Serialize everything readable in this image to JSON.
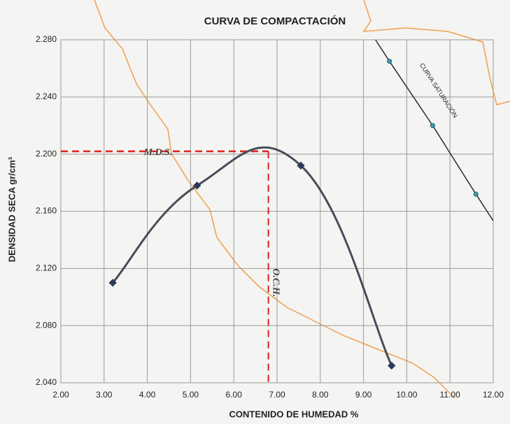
{
  "chart_data": {
    "type": "line",
    "title": "CURVA DE COMPACTACIÓN",
    "x_label": "CONTENIDO DE HUMEDAD %",
    "y_label": "DENSIDAD SECA gr/cm³",
    "xlim": [
      2,
      12
    ],
    "ylim": [
      2.04,
      2.28
    ],
    "xticks": [
      {
        "value": 2,
        "label": "2.00"
      },
      {
        "value": 3,
        "label": "3.00"
      },
      {
        "value": 4,
        "label": "4.00"
      },
      {
        "value": 5,
        "label": "5.00"
      },
      {
        "value": 6,
        "label": "6.00"
      },
      {
        "value": 7,
        "label": "7.00"
      },
      {
        "value": 8,
        "label": "8.00"
      },
      {
        "value": 9,
        "label": "9.00"
      },
      {
        "value": 10,
        "label": "10.00"
      },
      {
        "value": 11,
        "label": "11.00"
      },
      {
        "value": 12,
        "label": "12.00"
      }
    ],
    "yticks": [
      {
        "value": 2.04,
        "label": "2.040"
      },
      {
        "value": 2.08,
        "label": "2.080"
      },
      {
        "value": 2.12,
        "label": "2.120"
      },
      {
        "value": 2.16,
        "label": "2.160"
      },
      {
        "value": 2.2,
        "label": "2.200"
      },
      {
        "value": 2.24,
        "label": "2.240"
      },
      {
        "value": 2.28,
        "label": "2.280"
      }
    ],
    "grid": true,
    "series": [
      {
        "name": "CURVA DE COMPACTACIÓN",
        "color": "#474c5a",
        "smooth": true,
        "x": [
          3.2,
          5.15,
          7.55,
          9.65
        ],
        "values": [
          2.11,
          2.178,
          2.192,
          2.052
        ]
      },
      {
        "name": "CURVA SATURACIÓN",
        "color": "#2b2b2b",
        "smooth": false,
        "x": [
          9.6,
          10.6,
          11.6
        ],
        "values": [
          2.265,
          2.22,
          2.172
        ]
      }
    ],
    "annotations": {
      "mds": {
        "label": "M.D.S.",
        "value": 2.202
      },
      "och": {
        "label": "O.C.H.",
        "value": 6.8
      }
    }
  }
}
